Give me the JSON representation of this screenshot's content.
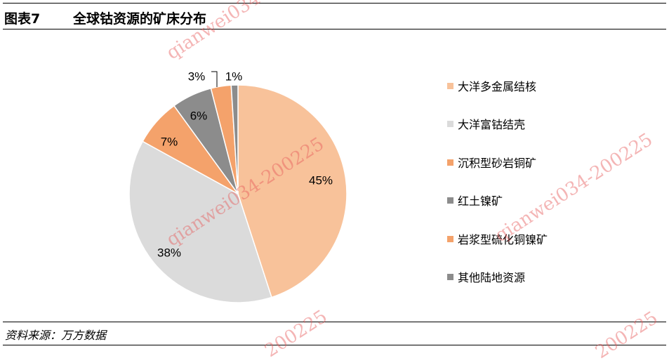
{
  "header": {
    "figure_label": "图表7",
    "title": "全球钴资源的矿床分布"
  },
  "chart_data": {
    "type": "pie",
    "title": "全球钴资源的矿床分布",
    "legend_position": "right",
    "slices": [
      {
        "label": "大洋多金属结核",
        "value": 45,
        "text": "45%",
        "color": "#F8C29A"
      },
      {
        "label": "大洋富钴结壳",
        "value": 38,
        "text": "38%",
        "color": "#DBDBDB"
      },
      {
        "label": "沉积型砂岩铜矿",
        "value": 7,
        "text": "7%",
        "color": "#F4A26B"
      },
      {
        "label": "红土镍矿",
        "value": 6,
        "text": "6%",
        "color": "#8C8C8C"
      },
      {
        "label": "岩浆型硫化铜镍矿",
        "value": 3,
        "text": "3%",
        "color": "#F4A26B"
      },
      {
        "label": "其他陆地资源",
        "value": 1,
        "text": "1%",
        "color": "#8C8C8C"
      }
    ]
  },
  "source": "资料来源：万方数据",
  "watermarks": [
    "qianwei034-200225",
    "qianwei034-200225",
    "qianwei034-200225",
    "200225",
    "200225"
  ]
}
